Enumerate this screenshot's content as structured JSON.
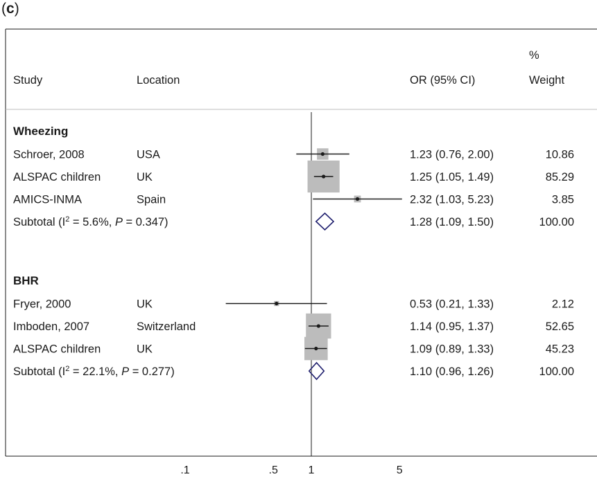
{
  "panel_label": {
    "open": "(",
    "letter": "c",
    "close": ")"
  },
  "chart_data": {
    "type": "forest",
    "headers": {
      "study": "Study",
      "location": "Location",
      "or": "OR (95% CI)",
      "weight_line1": "%",
      "weight_line2": "Weight"
    },
    "x_scale": "log",
    "reference_line": 1,
    "xticks": [
      {
        "value": 0.1,
        "label": ".1"
      },
      {
        "value": 0.5,
        "label": ".5"
      },
      {
        "value": 1,
        "label": "1"
      },
      {
        "value": 5,
        "label": "5"
      }
    ],
    "groups": [
      {
        "name": "Wheezing",
        "studies": [
          {
            "study": "Schroer, 2008",
            "location": "USA",
            "or": 1.23,
            "lo": 0.76,
            "hi": 2.0,
            "or_text": "1.23 (0.76, 2.00)",
            "weight": 10.86,
            "weight_text": "10.86"
          },
          {
            "study": "ALSPAC children",
            "location": "UK",
            "or": 1.25,
            "lo": 1.05,
            "hi": 1.49,
            "or_text": "1.25 (1.05, 1.49)",
            "weight": 85.29,
            "weight_text": "85.29"
          },
          {
            "study": "AMICS-INMA",
            "location": "Spain",
            "or": 2.32,
            "lo": 1.03,
            "hi": 5.23,
            "or_text": "2.32 (1.03, 5.23)",
            "weight": 3.85,
            "weight_text": "3.85"
          }
        ],
        "subtotal": {
          "label_prefix": "Subtotal  (I",
          "label_sup": "2",
          "label_mid": " = 5.6%, ",
          "label_p": "P",
          "label_suffix": " = 0.347)",
          "or": 1.28,
          "lo": 1.09,
          "hi": 1.5,
          "or_text": "1.28 (1.09, 1.50)",
          "weight_text": "100.00"
        }
      },
      {
        "name": "BHR",
        "studies": [
          {
            "study": "Fryer, 2000",
            "location": "UK",
            "or": 0.53,
            "lo": 0.21,
            "hi": 1.33,
            "or_text": "0.53 (0.21, 1.33)",
            "weight": 2.12,
            "weight_text": "2.12"
          },
          {
            "study": "Imboden, 2007",
            "location": "Switzerland",
            "or": 1.14,
            "lo": 0.95,
            "hi": 1.37,
            "or_text": "1.14 (0.95, 1.37)",
            "weight": 52.65,
            "weight_text": "52.65"
          },
          {
            "study": "ALSPAC children",
            "location": "UK",
            "or": 1.09,
            "lo": 0.89,
            "hi": 1.33,
            "or_text": "1.09 (0.89, 1.33)",
            "weight": 45.23,
            "weight_text": "45.23"
          }
        ],
        "subtotal": {
          "label_prefix": "Subtotal  (I",
          "label_sup": "2",
          "label_mid": " = 22.1%, ",
          "label_p": "P",
          "label_suffix": " = 0.277)",
          "or": 1.1,
          "lo": 0.96,
          "hi": 1.26,
          "or_text": "1.10 (0.96, 1.26)",
          "weight_text": "100.00"
        }
      }
    ],
    "colors": {
      "box": "#bcbcbc",
      "diamond": "#1f1f6e",
      "line": "#1a1a1a"
    }
  }
}
